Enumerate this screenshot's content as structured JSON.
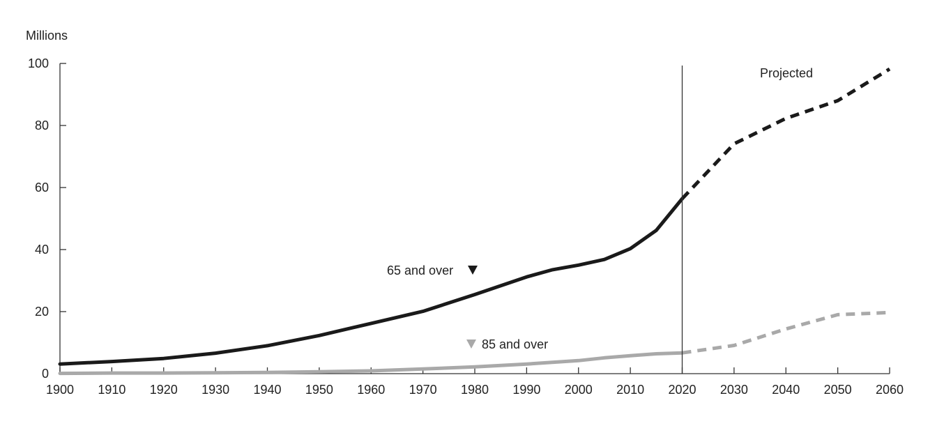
{
  "chart_data": {
    "type": "line",
    "title": "",
    "ylabel": "Millions",
    "xlabel": "",
    "xlim": [
      1900,
      2060
    ],
    "ylim": [
      0,
      100
    ],
    "x_ticks": [
      "1900",
      "1910",
      "1920",
      "1930",
      "1940",
      "1950",
      "1960",
      "1970",
      "1980",
      "1990",
      "2000",
      "2010",
      "2020",
      "2030",
      "2040",
      "2050",
      "2060"
    ],
    "y_ticks": [
      "0",
      "20",
      "40",
      "60",
      "80",
      "100"
    ],
    "grid": false,
    "divider_year": 2020,
    "projected_label": "Projected",
    "series": [
      {
        "name": "65 and over",
        "color": "#1a1a1a",
        "historical": [
          [
            1900,
            3.1
          ],
          [
            1910,
            3.9
          ],
          [
            1920,
            4.9
          ],
          [
            1930,
            6.6
          ],
          [
            1940,
            9.0
          ],
          [
            1950,
            12.3
          ],
          [
            1960,
            16.2
          ],
          [
            1970,
            20.1
          ],
          [
            1980,
            25.5
          ],
          [
            1990,
            31.2
          ],
          [
            1995,
            33.5
          ],
          [
            2000,
            35.0
          ],
          [
            2005,
            36.8
          ],
          [
            2010,
            40.3
          ],
          [
            2015,
            46.2
          ],
          [
            2020,
            56.4
          ]
        ],
        "projected": [
          [
            2020,
            56.4
          ],
          [
            2030,
            74.1
          ],
          [
            2040,
            82.3
          ],
          [
            2050,
            88.0
          ],
          [
            2060,
            98.2
          ]
        ]
      },
      {
        "name": "85 and over",
        "color": "#a9a9a9",
        "historical": [
          [
            1900,
            0.1
          ],
          [
            1910,
            0.2
          ],
          [
            1920,
            0.2
          ],
          [
            1930,
            0.3
          ],
          [
            1940,
            0.4
          ],
          [
            1950,
            0.6
          ],
          [
            1960,
            0.9
          ],
          [
            1970,
            1.5
          ],
          [
            1980,
            2.2
          ],
          [
            1990,
            3.1
          ],
          [
            2000,
            4.2
          ],
          [
            2005,
            5.1
          ],
          [
            2010,
            5.8
          ],
          [
            2015,
            6.4
          ],
          [
            2020,
            6.7
          ]
        ],
        "projected": [
          [
            2020,
            6.7
          ],
          [
            2030,
            9.1
          ],
          [
            2040,
            14.4
          ],
          [
            2050,
            19.0
          ],
          [
            2060,
            19.7
          ]
        ]
      }
    ]
  }
}
